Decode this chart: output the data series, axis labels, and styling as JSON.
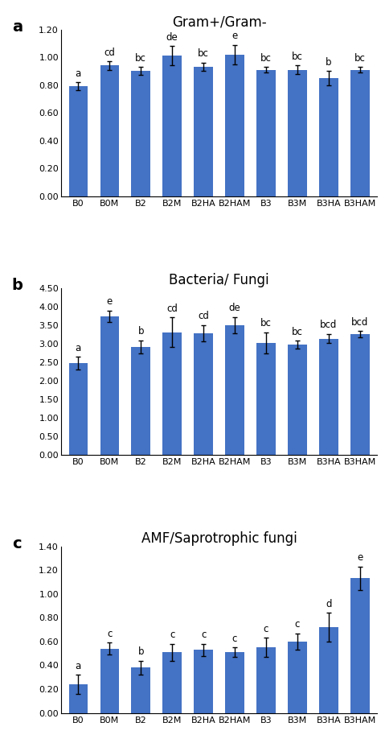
{
  "categories": [
    "B0",
    "B0M",
    "B2",
    "B2M",
    "B2HA",
    "B2HAM",
    "B3",
    "B3M",
    "B3HA",
    "B3HAM"
  ],
  "panel_a": {
    "title": "Gram+/Gram-",
    "label": "a",
    "values": [
      0.79,
      0.94,
      0.9,
      1.01,
      0.93,
      1.02,
      0.91,
      0.91,
      0.85,
      0.91
    ],
    "errors": [
      0.03,
      0.03,
      0.03,
      0.07,
      0.03,
      0.07,
      0.02,
      0.03,
      0.05,
      0.02
    ],
    "sig_labels": [
      "a",
      "cd",
      "bc",
      "de",
      "bc",
      "e",
      "bc",
      "bc",
      "b",
      "bc"
    ],
    "ylim": [
      0.0,
      1.2
    ],
    "yticks": [
      0.0,
      0.2,
      0.4,
      0.6,
      0.8,
      1.0,
      1.2
    ]
  },
  "panel_b": {
    "title": "Bacteria/ Fungi",
    "label": "b",
    "values": [
      2.47,
      3.73,
      2.91,
      3.3,
      3.28,
      3.49,
      3.02,
      2.97,
      3.13,
      3.25
    ],
    "errors": [
      0.17,
      0.15,
      0.17,
      0.4,
      0.22,
      0.22,
      0.28,
      0.1,
      0.12,
      0.08
    ],
    "sig_labels": [
      "a",
      "e",
      "b",
      "cd",
      "cd",
      "de",
      "bc",
      "bc",
      "bcd",
      "bcd"
    ],
    "ylim": [
      0.0,
      4.5
    ],
    "yticks": [
      0.0,
      0.5,
      1.0,
      1.5,
      2.0,
      2.5,
      3.0,
      3.5,
      4.0,
      4.5
    ]
  },
  "panel_c": {
    "title": "AMF/Saprotrophic fungi",
    "label": "c",
    "values": [
      0.24,
      0.54,
      0.38,
      0.51,
      0.53,
      0.51,
      0.55,
      0.6,
      0.72,
      1.13
    ],
    "errors": [
      0.08,
      0.05,
      0.06,
      0.07,
      0.05,
      0.04,
      0.08,
      0.07,
      0.12,
      0.1
    ],
    "sig_labels": [
      "a",
      "c",
      "b",
      "c",
      "c",
      "c",
      "c",
      "c",
      "d",
      "e"
    ],
    "ylim": [
      0.0,
      1.4
    ],
    "yticks": [
      0.0,
      0.2,
      0.4,
      0.6,
      0.8,
      1.0,
      1.2,
      1.4
    ]
  },
  "bar_color": "#4472C4",
  "bar_width": 0.6,
  "title_fontsize": 12,
  "tick_fontsize": 8,
  "label_fontsize": 14,
  "sig_fontsize": 8.5
}
